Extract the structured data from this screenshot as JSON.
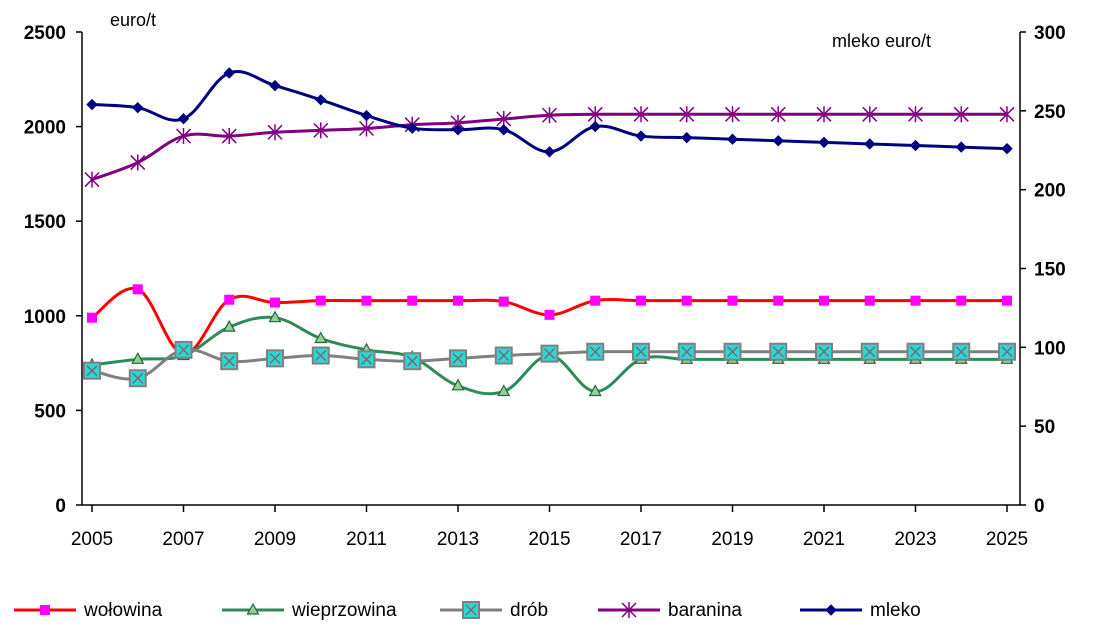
{
  "chart_data": {
    "type": "line",
    "left_axis_unit": "euro/t",
    "right_axis_unit": "mleko euro/t",
    "y_left_ticks": [
      "0",
      "500",
      "1000",
      "1500",
      "2000",
      "2500"
    ],
    "y_right_ticks": [
      "0",
      "50",
      "100",
      "150",
      "200",
      "250",
      "300"
    ],
    "x_tick_labels": [
      "2005",
      "2007",
      "2009",
      "2011",
      "2013",
      "2015",
      "2017",
      "2019",
      "2021",
      "2023",
      "2025"
    ],
    "ylim_left": [
      0,
      2500
    ],
    "ylim_right": [
      0,
      300
    ],
    "xlim": [
      2005,
      2025
    ],
    "legend_position": "bottom",
    "series": [
      {
        "name": "wołowina",
        "axis": "left",
        "color": "#ff0000",
        "marker": "square-magenta",
        "x": [
          2005,
          2006,
          2007,
          2008,
          2009,
          2010,
          2011,
          2012,
          2013,
          2014,
          2015,
          2016,
          2017,
          2018,
          2019,
          2020,
          2021,
          2022,
          2023,
          2024,
          2025
        ],
        "values": [
          990,
          1140,
          800,
          1085,
          1070,
          1080,
          1080,
          1080,
          1080,
          1075,
          1005,
          1080,
          1080,
          1080,
          1080,
          1080,
          1080,
          1080,
          1080,
          1080,
          1080
        ]
      },
      {
        "name": "wieprzowina",
        "axis": "left",
        "color": "#2e8b57",
        "marker": "triangle",
        "x": [
          2005,
          2006,
          2007,
          2008,
          2009,
          2010,
          2011,
          2012,
          2013,
          2014,
          2015,
          2016,
          2017,
          2018,
          2019,
          2020,
          2021,
          2022,
          2023,
          2024,
          2025
        ],
        "values": [
          740,
          770,
          790,
          940,
          990,
          880,
          820,
          780,
          630,
          600,
          790,
          600,
          770,
          770,
          770,
          770,
          770,
          770,
          770,
          770,
          770
        ]
      },
      {
        "name": "drób",
        "axis": "left",
        "color": "#808080",
        "marker": "square-cyan-x",
        "x": [
          2005,
          2006,
          2007,
          2008,
          2009,
          2010,
          2011,
          2012,
          2013,
          2014,
          2015,
          2016,
          2017,
          2018,
          2019,
          2020,
          2021,
          2022,
          2023,
          2024,
          2025
        ],
        "values": [
          710,
          670,
          820,
          760,
          775,
          790,
          770,
          760,
          775,
          790,
          800,
          810,
          810,
          810,
          810,
          810,
          810,
          810,
          810,
          810,
          810
        ]
      },
      {
        "name": "baranina",
        "axis": "left",
        "color": "#800080",
        "marker": "asterisk",
        "x": [
          2005,
          2006,
          2007,
          2008,
          2009,
          2010,
          2011,
          2012,
          2013,
          2014,
          2015,
          2016,
          2017,
          2018,
          2019,
          2020,
          2021,
          2022,
          2023,
          2024,
          2025
        ],
        "values": [
          1720,
          1810,
          1950,
          1950,
          1970,
          1980,
          1990,
          2010,
          2020,
          2040,
          2060,
          2065,
          2065,
          2065,
          2065,
          2065,
          2065,
          2065,
          2065,
          2065,
          2065
        ]
      },
      {
        "name": "mleko",
        "axis": "right",
        "color": "#000080",
        "marker": "diamond",
        "x": [
          2005,
          2006,
          2007,
          2008,
          2009,
          2010,
          2011,
          2012,
          2013,
          2014,
          2015,
          2016,
          2017,
          2018,
          2019,
          2020,
          2021,
          2022,
          2023,
          2024,
          2025
        ],
        "values": [
          254,
          252,
          245,
          274,
          266,
          257,
          247,
          239,
          238,
          238,
          224,
          240,
          234,
          233,
          232,
          231,
          230,
          229,
          228,
          227,
          226
        ]
      }
    ]
  }
}
